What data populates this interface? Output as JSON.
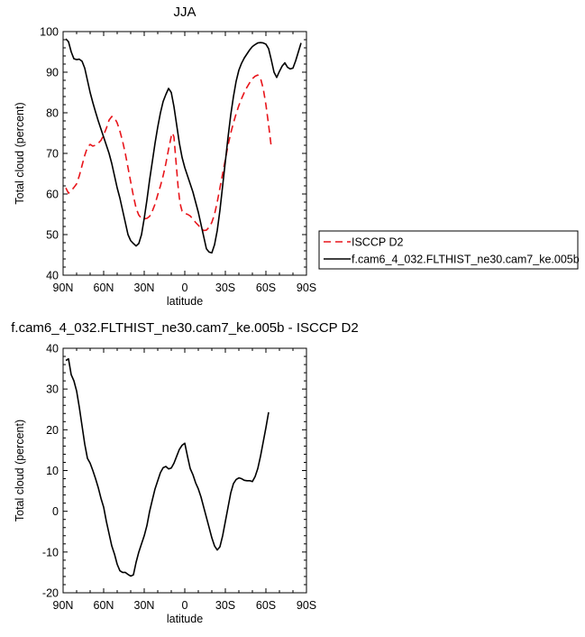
{
  "chart_data": [
    {
      "type": "line",
      "title": "JJA",
      "xlabel": "latitude",
      "ylabel": "Total cloud (percent)",
      "xlim": [
        90,
        -90
      ],
      "ylim": [
        40,
        100
      ],
      "xticks": [
        90,
        60,
        30,
        0,
        -30,
        -60,
        -90
      ],
      "xtick_labels": [
        "90N",
        "60N",
        "30N",
        "0",
        "30S",
        "60S",
        "90S"
      ],
      "yticks": [
        40,
        50,
        60,
        70,
        80,
        90,
        100
      ],
      "ytick_labels": [
        "40",
        "50",
        "60",
        "70",
        "80",
        "90",
        "100"
      ],
      "legend_position": "right",
      "series": [
        {
          "name": "ISCCP D2",
          "color": "#e8151b",
          "dash": "dashed",
          "points": [
            [
              88,
              61.5
            ],
            [
              86,
              60.2
            ],
            [
              84,
              60.8
            ],
            [
              82,
              61.6
            ],
            [
              80,
              62.5
            ],
            [
              78,
              64.5
            ],
            [
              76,
              67
            ],
            [
              74,
              69.5
            ],
            [
              72,
              71.5
            ],
            [
              70,
              72.2
            ],
            [
              68,
              71.8
            ],
            [
              66,
              72
            ],
            [
              64,
              72.5
            ],
            [
              62,
              73.2
            ],
            [
              60,
              74.5
            ],
            [
              58,
              76.2
            ],
            [
              56,
              78.2
            ],
            [
              54,
              79.1
            ],
            [
              52,
              78.8
            ],
            [
              50,
              77.5
            ],
            [
              48,
              75.5
            ],
            [
              46,
              73
            ],
            [
              44,
              70
            ],
            [
              42,
              66.5
            ],
            [
              40,
              63
            ],
            [
              38,
              59.5
            ],
            [
              36,
              56.5
            ],
            [
              34,
              54.8
            ],
            [
              32,
              54
            ],
            [
              30,
              53.9
            ],
            [
              28,
              54
            ],
            [
              26,
              54.5
            ],
            [
              24,
              55.8
            ],
            [
              22,
              57.5
            ],
            [
              20,
              59.8
            ],
            [
              18,
              62
            ],
            [
              16,
              64.5
            ],
            [
              14,
              67.5
            ],
            [
              12,
              71
            ],
            [
              10,
              74.2
            ],
            [
              9,
              75
            ],
            [
              8,
              74
            ],
            [
              7,
              70
            ],
            [
              6,
              66
            ],
            [
              5,
              62
            ],
            [
              4,
              59
            ],
            [
              3,
              57
            ],
            [
              2,
              55.8
            ],
            [
              0,
              55.2
            ],
            [
              -2,
              55
            ],
            [
              -4,
              54.6
            ],
            [
              -6,
              53.8
            ],
            [
              -8,
              53
            ],
            [
              -10,
              52.3
            ],
            [
              -12,
              51.5
            ],
            [
              -14,
              51
            ],
            [
              -16,
              51.1
            ],
            [
              -18,
              51.8
            ],
            [
              -20,
              53
            ],
            [
              -22,
              55
            ],
            [
              -24,
              58
            ],
            [
              -26,
              61.5
            ],
            [
              -28,
              65
            ],
            [
              -30,
              68.5
            ],
            [
              -32,
              72
            ],
            [
              -34,
              75
            ],
            [
              -36,
              77.5
            ],
            [
              -38,
              79.8
            ],
            [
              -40,
              81.8
            ],
            [
              -42,
              83.5
            ],
            [
              -44,
              85
            ],
            [
              -46,
              86.3
            ],
            [
              -48,
              87.4
            ],
            [
              -50,
              88.4
            ],
            [
              -52,
              89
            ],
            [
              -54,
              89.3
            ],
            [
              -56,
              88.5
            ],
            [
              -58,
              86
            ],
            [
              -60,
              82
            ],
            [
              -62,
              77
            ],
            [
              -64,
              71.5
            ]
          ]
        },
        {
          "name": "f.cam6_4_032.FLTHIST_ne30.cam7_ke.005b",
          "color": "#000000",
          "dash": "solid",
          "points": [
            [
              88,
              98.2
            ],
            [
              86,
              97.5
            ],
            [
              84,
              95
            ],
            [
              82,
              93.3
            ],
            [
              80,
              93.1
            ],
            [
              78,
              93.2
            ],
            [
              76,
              92.7
            ],
            [
              74,
              91
            ],
            [
              72,
              88
            ],
            [
              70,
              85
            ],
            [
              68,
              82.5
            ],
            [
              66,
              80.2
            ],
            [
              64,
              78
            ],
            [
              62,
              76
            ],
            [
              60,
              74
            ],
            [
              58,
              72
            ],
            [
              56,
              70
            ],
            [
              54,
              67.5
            ],
            [
              52,
              64.5
            ],
            [
              50,
              61.5
            ],
            [
              48,
              59
            ],
            [
              46,
              56
            ],
            [
              44,
              53
            ],
            [
              42,
              50
            ],
            [
              40,
              48.5
            ],
            [
              38,
              47.8
            ],
            [
              36,
              47.2
            ],
            [
              34,
              47.8
            ],
            [
              32,
              50
            ],
            [
              30,
              54
            ],
            [
              28,
              58.5
            ],
            [
              26,
              63.5
            ],
            [
              24,
              68
            ],
            [
              22,
              72.5
            ],
            [
              20,
              76.5
            ],
            [
              18,
              80
            ],
            [
              16,
              82.8
            ],
            [
              14,
              84.5
            ],
            [
              12,
              86
            ],
            [
              10,
              85
            ],
            [
              8,
              81.5
            ],
            [
              6,
              77
            ],
            [
              4,
              72.5
            ],
            [
              2,
              69
            ],
            [
              0,
              66.5
            ],
            [
              -2,
              64.5
            ],
            [
              -4,
              62.5
            ],
            [
              -6,
              60.5
            ],
            [
              -8,
              58
            ],
            [
              -10,
              55.5
            ],
            [
              -12,
              52.5
            ],
            [
              -14,
              49.5
            ],
            [
              -16,
              46.5
            ],
            [
              -18,
              45.7
            ],
            [
              -20,
              45.5
            ],
            [
              -22,
              47.5
            ],
            [
              -24,
              51
            ],
            [
              -26,
              56
            ],
            [
              -28,
              62
            ],
            [
              -30,
              68
            ],
            [
              -32,
              74
            ],
            [
              -34,
              79.5
            ],
            [
              -36,
              84
            ],
            [
              -38,
              87.8
            ],
            [
              -40,
              90.5
            ],
            [
              -42,
              92.2
            ],
            [
              -44,
              93.5
            ],
            [
              -46,
              94.5
            ],
            [
              -48,
              95.5
            ],
            [
              -50,
              96.3
            ],
            [
              -52,
              96.8
            ],
            [
              -54,
              97.2
            ],
            [
              -56,
              97.3
            ],
            [
              -58,
              97.2
            ],
            [
              -60,
              96.9
            ],
            [
              -62,
              95.8
            ],
            [
              -64,
              93
            ],
            [
              -66,
              90
            ],
            [
              -68,
              88.7
            ],
            [
              -70,
              90.2
            ],
            [
              -72,
              91.5
            ],
            [
              -74,
              92.3
            ],
            [
              -76,
              91.2
            ],
            [
              -78,
              90.8
            ],
            [
              -80,
              91
            ],
            [
              -82,
              92.8
            ],
            [
              -84,
              95
            ],
            [
              -86,
              97.2
            ]
          ]
        }
      ]
    },
    {
      "type": "line",
      "title": "f.cam6_4_032.FLTHIST_ne30.cam7_ke.005b - ISCCP D2",
      "xlabel": "latitude",
      "ylabel": "Total cloud (percent)",
      "xlim": [
        90,
        -90
      ],
      "ylim": [
        -20,
        40
      ],
      "xticks": [
        90,
        60,
        30,
        0,
        -30,
        -60,
        -90
      ],
      "xtick_labels": [
        "90N",
        "60N",
        "30N",
        "0",
        "30S",
        "60S",
        "90S"
      ],
      "yticks": [
        -20,
        -10,
        0,
        10,
        20,
        30,
        40
      ],
      "ytick_labels": [
        "-20",
        "-10",
        "0",
        "10",
        "20",
        "30",
        "40"
      ],
      "series": [
        {
          "color": "#000000",
          "dash": "solid",
          "points": [
            [
              88,
              37
            ],
            [
              86,
              37.4
            ],
            [
              84,
              33.5
            ],
            [
              82,
              32
            ],
            [
              80,
              29.5
            ],
            [
              78,
              25.5
            ],
            [
              76,
              21
            ],
            [
              74,
              16.5
            ],
            [
              72,
              13
            ],
            [
              70,
              11.8
            ],
            [
              68,
              10
            ],
            [
              66,
              8
            ],
            [
              64,
              5.8
            ],
            [
              62,
              3.2
            ],
            [
              60,
              1
            ],
            [
              58,
              -2.5
            ],
            [
              56,
              -5.5
            ],
            [
              54,
              -8.5
            ],
            [
              52,
              -10.5
            ],
            [
              50,
              -13
            ],
            [
              48,
              -14.6
            ],
            [
              46,
              -15
            ],
            [
              44,
              -15
            ],
            [
              42,
              -15.5
            ],
            [
              40,
              -15.9
            ],
            [
              38,
              -15.6
            ],
            [
              36,
              -12.5
            ],
            [
              34,
              -10
            ],
            [
              32,
              -8
            ],
            [
              30,
              -6
            ],
            [
              28,
              -3.5
            ],
            [
              26,
              0
            ],
            [
              24,
              2.8
            ],
            [
              22,
              5.5
            ],
            [
              20,
              7.5
            ],
            [
              18,
              9.5
            ],
            [
              16,
              10.7
            ],
            [
              14,
              11
            ],
            [
              12,
              10.4
            ],
            [
              10,
              10.6
            ],
            [
              8,
              11.8
            ],
            [
              6,
              13.5
            ],
            [
              4,
              15.2
            ],
            [
              2,
              16.2
            ],
            [
              0,
              16.7
            ],
            [
              -2,
              13.5
            ],
            [
              -4,
              10.5
            ],
            [
              -6,
              9
            ],
            [
              -8,
              7
            ],
            [
              -10,
              5.5
            ],
            [
              -12,
              3.5
            ],
            [
              -14,
              1
            ],
            [
              -16,
              -1.5
            ],
            [
              -18,
              -4
            ],
            [
              -20,
              -6.5
            ],
            [
              -22,
              -8.5
            ],
            [
              -24,
              -9.5
            ],
            [
              -26,
              -8.7
            ],
            [
              -28,
              -6
            ],
            [
              -30,
              -2.5
            ],
            [
              -32,
              1
            ],
            [
              -34,
              4.5
            ],
            [
              -36,
              6.8
            ],
            [
              -38,
              7.8
            ],
            [
              -40,
              8.2
            ],
            [
              -42,
              8
            ],
            [
              -44,
              7.6
            ],
            [
              -46,
              7.5
            ],
            [
              -48,
              7.5
            ],
            [
              -50,
              7.3
            ],
            [
              -52,
              8.5
            ],
            [
              -54,
              10.5
            ],
            [
              -56,
              13.5
            ],
            [
              -58,
              17
            ],
            [
              -60,
              20.5
            ],
            [
              -62,
              24.3
            ]
          ]
        }
      ]
    }
  ]
}
